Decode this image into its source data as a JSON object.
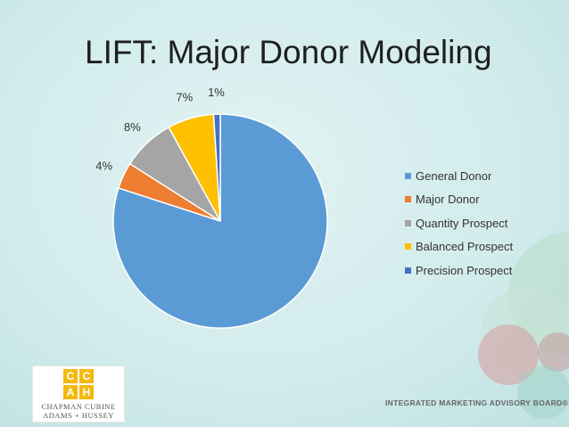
{
  "slide": {
    "title": "LIFT: Major Donor Modeling"
  },
  "chart_data": {
    "type": "pie",
    "title": "",
    "labels": [
      "General Donor",
      "Major Donor",
      "Quantity Prospect",
      "Balanced Prospect",
      "Precision Prospect"
    ],
    "values": [
      80,
      4,
      8,
      7,
      1
    ],
    "value_labels": [
      "",
      "4%",
      "8%",
      "7%",
      "1%"
    ],
    "colors": [
      "#5b9bd5",
      "#ed7d31",
      "#a5a5a5",
      "#ffc000",
      "#4472c4"
    ],
    "legend_position": "right",
    "start_angle_deg": 0,
    "direction": "clockwise"
  },
  "branding": {
    "logo_letters": [
      "C",
      "C",
      "A",
      "H"
    ],
    "logo_line1": "CHAPMAN CUBINE",
    "logo_line2": "ADAMS + HUSSEY",
    "footer_org": "INTEGRATED MARKETING ADVISORY BOARD®"
  }
}
